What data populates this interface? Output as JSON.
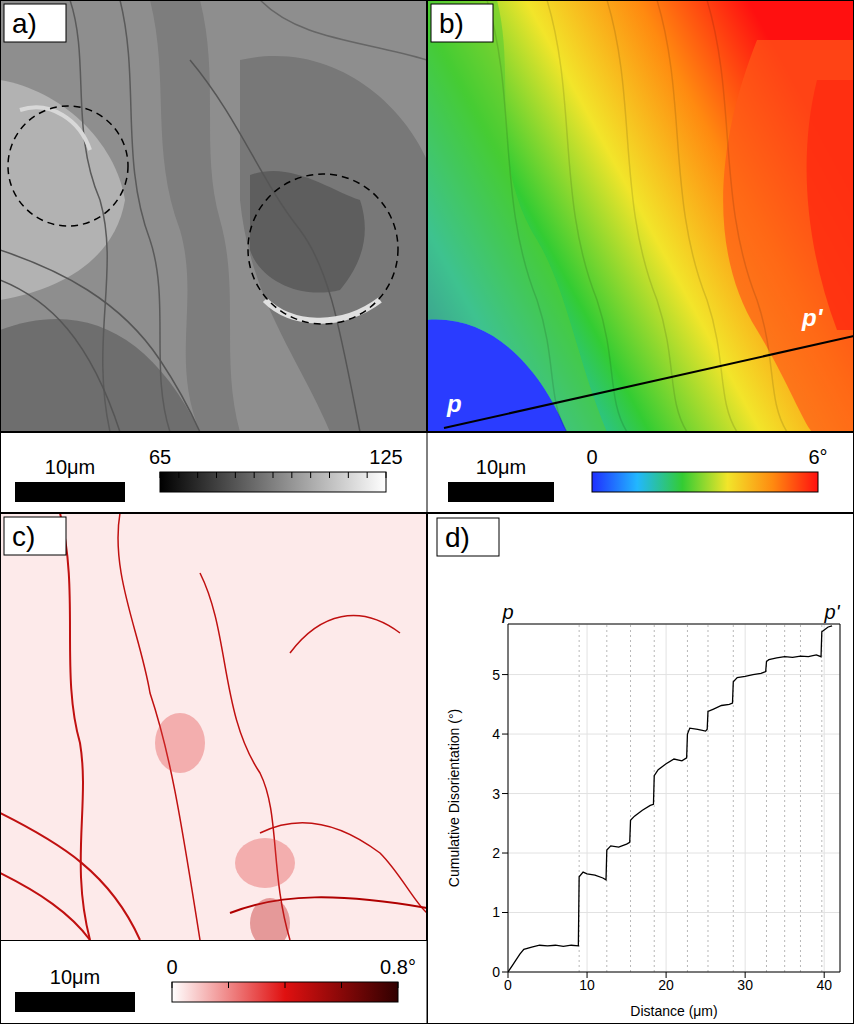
{
  "panels": [
    {
      "label": "a)",
      "scale_bar": "10μm",
      "colorbar": {
        "range": [
          65,
          125
        ],
        "ticks": [
          65,
          125
        ],
        "minor_ticks": [
          65,
          70,
          75,
          80,
          85,
          90,
          95,
          100,
          105,
          110,
          115,
          120,
          125
        ],
        "colors": [
          "#000000",
          "#ffffff"
        ]
      }
    },
    {
      "label": "b)",
      "scale_bar": "10μm",
      "profile": {
        "start": "p",
        "end": "p'"
      },
      "colorbar": {
        "range": [
          0,
          6
        ],
        "ticks": [
          0,
          {
            "value": 6,
            "label": "6°"
          }
        ],
        "colors": [
          "#1f2fff",
          "#22b7ff",
          "#33cc33",
          "#f2e52a",
          "#ff8a10",
          "#ff1010"
        ]
      }
    },
    {
      "label": "c)",
      "scale_bar": "10μm",
      "colorbar": {
        "range": [
          0,
          0.8
        ],
        "ticks": [
          0,
          {
            "value": 0.8,
            "label": "0.8°"
          }
        ],
        "minor_ticks": [
          0,
          0.2,
          0.4,
          0.6,
          0.8
        ],
        "colors": [
          "#ffffff",
          "#e01010",
          "#300000"
        ]
      }
    }
  ],
  "chart_data": {
    "type": "line",
    "title": "d)",
    "xlabel": "Distance (μm)",
    "ylabel": "Cumulative Disorientation (°)",
    "x": [
      0,
      0.5,
      1,
      1.5,
      2,
      3,
      4,
      5,
      6,
      7,
      8,
      8.9,
      9,
      9.5,
      10,
      11,
      12,
      12.4,
      12.5,
      13,
      14,
      15,
      15.4,
      15.5,
      16,
      17,
      18,
      18.4,
      18.5,
      19,
      20,
      21,
      22,
      22.6,
      22.7,
      23,
      24,
      25,
      25.2,
      25.3,
      26,
      27,
      28,
      28.4,
      28.5,
      29,
      30,
      31,
      32,
      32.6,
      32.7,
      33,
      34,
      35,
      36,
      37,
      38,
      39,
      39.6,
      39.7,
      40,
      40.5,
      41
    ],
    "values": [
      0,
      0.1,
      0.2,
      0.3,
      0.38,
      0.42,
      0.45,
      0.44,
      0.45,
      0.43,
      0.45,
      0.44,
      1.6,
      1.68,
      1.65,
      1.63,
      1.58,
      1.55,
      2.05,
      2.12,
      2.1,
      2.15,
      2.18,
      2.55,
      2.62,
      2.72,
      2.8,
      2.82,
      3.3,
      3.4,
      3.5,
      3.58,
      3.55,
      3.6,
      4.0,
      4.1,
      4.08,
      4.05,
      4.08,
      4.38,
      4.42,
      4.48,
      4.5,
      4.52,
      4.88,
      4.95,
      4.97,
      5.0,
      5.02,
      5.05,
      5.22,
      5.25,
      5.28,
      5.3,
      5.29,
      5.31,
      5.3,
      5.33,
      5.3,
      5.72,
      5.75,
      5.8,
      5.82
    ],
    "color": "#000000",
    "xlim": [
      0,
      42
    ],
    "xticks": [
      0,
      10,
      20,
      30,
      40
    ],
    "ylim": [
      0,
      5.85
    ],
    "yticks": [
      0,
      1,
      2,
      3,
      4,
      5
    ],
    "grid": true,
    "step_lines": [
      9,
      12.5,
      15.5,
      18.5,
      22.7,
      25.3,
      28.5,
      32.7,
      35,
      37,
      39.7
    ],
    "annotations": [
      {
        "text": "p",
        "x": 0
      },
      {
        "text": "p'",
        "x": 41
      }
    ]
  }
}
